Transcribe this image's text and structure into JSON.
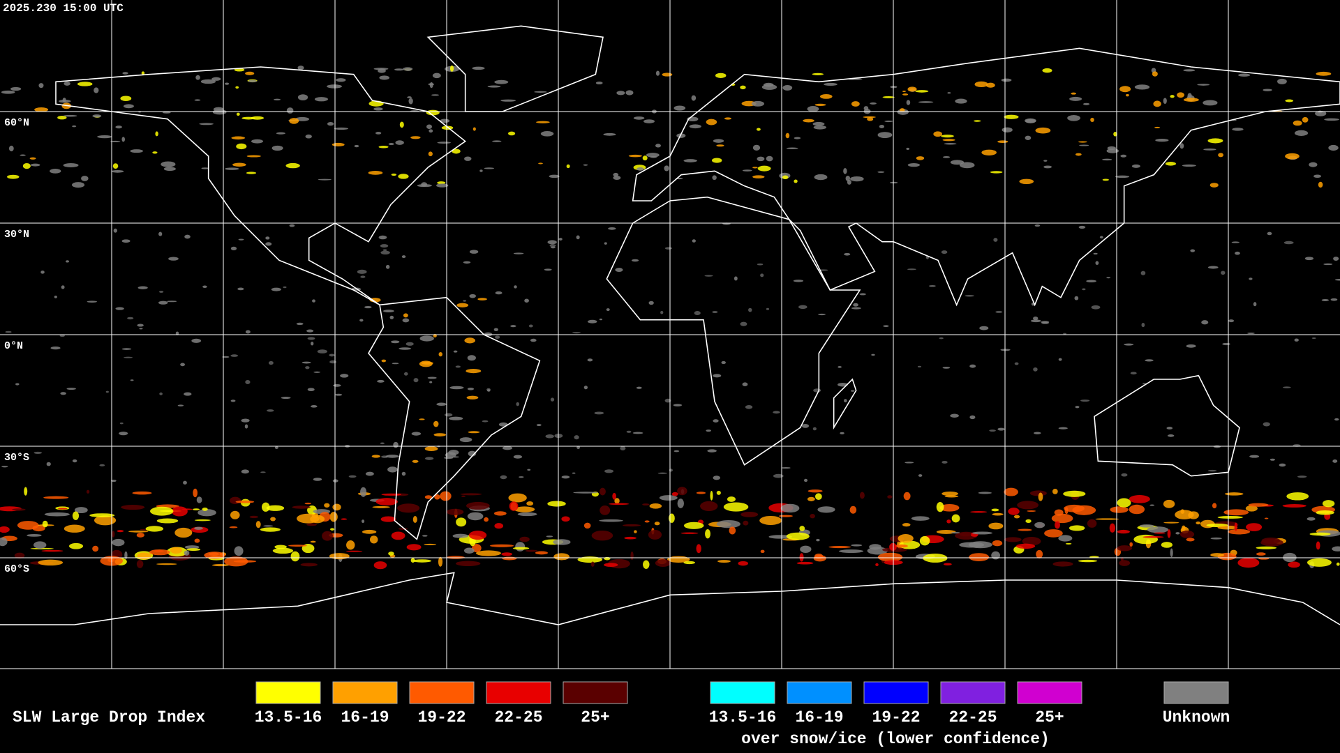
{
  "header": {
    "timestamp": "2025.230 15:00 UTC"
  },
  "latitude_labels": [
    "60°N",
    "30°N",
    "0°N",
    "30°S",
    "60°S"
  ],
  "legend": {
    "title": "SLW Large Drop Index",
    "items": [
      {
        "label": "13.5-16",
        "color": "#ffff00"
      },
      {
        "label": "16-19",
        "color": "#ffa000"
      },
      {
        "label": "19-22",
        "color": "#ff5a00"
      },
      {
        "label": "22-25",
        "color": "#e80000"
      },
      {
        "label": "25+",
        "color": "#5a0000"
      }
    ],
    "snow_items": [
      {
        "label": "13.5-16",
        "color": "#00ffff"
      },
      {
        "label": "16-19",
        "color": "#0090ff"
      },
      {
        "label": "19-22",
        "color": "#0000ff"
      },
      {
        "label": "22-25",
        "color": "#8020e0"
      },
      {
        "label": "25+",
        "color": "#d000d0"
      }
    ],
    "snow_caption": "over snow/ice (lower confidence)",
    "unknown": {
      "label": "Unknown",
      "color": "#808080"
    }
  }
}
